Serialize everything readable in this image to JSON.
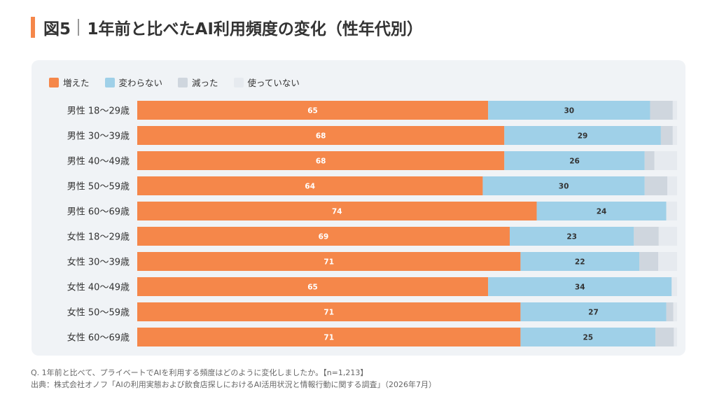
{
  "header": {
    "figure_label": "図5",
    "title": "1年前と比べたAI利用頻度の変化（性年代別）"
  },
  "colors": {
    "accent": "#f5874a",
    "increased": "#f5874a",
    "unchanged": "#9fd0e8",
    "decreased": "#cfd6de",
    "not_using": "#e6eaef",
    "panel_bg": "#f0f3f6"
  },
  "legend": [
    {
      "label": "増えた",
      "color": "#f5874a"
    },
    {
      "label": "変わらない",
      "color": "#9fd0e8"
    },
    {
      "label": "減った",
      "color": "#cfd6de"
    },
    {
      "label": "使っていない",
      "color": "#e6eaef"
    }
  ],
  "chart_data": {
    "type": "bar",
    "orientation": "horizontal",
    "stacked": true,
    "unit": "%",
    "xlim": [
      0,
      100
    ],
    "grid": false,
    "legend_position": "top-left",
    "categories": [
      "男性 18〜29歳",
      "男性 30〜39歳",
      "男性 40〜49歳",
      "男性 50〜59歳",
      "男性 60〜69歳",
      "女性 18〜29歳",
      "女性 30〜39歳",
      "女性 40〜49歳",
      "女性 50〜59歳",
      "女性 60〜69歳"
    ],
    "series": [
      {
        "name": "増えた",
        "color": "#f5874a",
        "label_color": "#ffffff",
        "values": [
          65,
          68,
          68,
          64,
          74,
          69,
          71,
          65,
          71,
          71
        ]
      },
      {
        "name": "変わらない",
        "color": "#9fd0e8",
        "label_color": "#333333",
        "values": [
          30,
          29,
          26,
          30,
          24,
          23,
          22,
          34,
          27,
          25
        ]
      },
      {
        "name": "減った",
        "color": "#cfd6de",
        "values": [
          4.2,
          2.2,
          1.8,
          4.2,
          0,
          4.6,
          3.5,
          0,
          1.3,
          3.4
        ]
      },
      {
        "name": "使っていない",
        "color": "#e6eaef",
        "values": [
          0.8,
          0.8,
          4.2,
          1.8,
          2.0,
          3.4,
          3.5,
          1.0,
          0.7,
          0.6
        ]
      }
    ],
    "data_labels": {
      "増えた": [
        "65",
        "68",
        "68",
        "64",
        "74",
        "69",
        "71",
        "65",
        "71",
        "71"
      ],
      "変わらない": [
        "30",
        "29",
        "26",
        "30",
        "24",
        "23",
        "22",
        "34",
        "27",
        "25"
      ]
    }
  },
  "notes": {
    "question": "Q. 1年前と比べて、プライベートでAIを利用する頻度はどのように変化しましたか。【n=1,213】",
    "source": "出典：株式会社オノフ「AIの利用実態および飲食店探しにおけるAI活用状況と情報行動に関する調査」（2026年7月）"
  }
}
